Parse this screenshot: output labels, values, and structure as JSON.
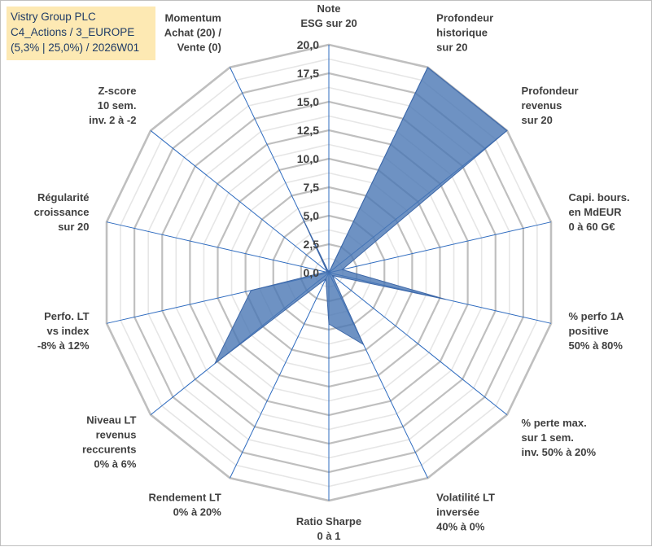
{
  "title_lines": [
    "Vistry Group PLC",
    "C4_Actions / 3_EUROPE",
    "(5,3% | 25,0%) / 2026W01"
  ],
  "chart_data": {
    "type": "radar",
    "r_range": [
      0,
      20
    ],
    "r_ticks": [
      "0,0",
      "2,5",
      "5,0",
      "7,5",
      "10,0",
      "12,5",
      "15,0",
      "17,5",
      "20,0"
    ],
    "grid": true,
    "legend": "none",
    "colors": {
      "fill": "#4a77b4",
      "fill_opacity": 0.8,
      "spokes": "#2e6bbf",
      "grid": "#bfbfbf"
    },
    "axes": [
      {
        "label": [
          "Note",
          "ESG sur 20"
        ],
        "value": 0
      },
      {
        "label": [
          "Profondeur",
          "historique",
          "sur 20"
        ],
        "value": 20
      },
      {
        "label": [
          "Profondeur",
          "revenus",
          "sur 20"
        ],
        "value": 20
      },
      {
        "label": [
          "Capi. bours.",
          "en MdEUR",
          "0 à 60 G€"
        ],
        "value": 1.2
      },
      {
        "label": [
          "% perfo 1A",
          "positive",
          "50% à 80%"
        ],
        "value": 10.5
      },
      {
        "label": [
          "% perte max.",
          "sur 1 sem.",
          "inv. 50% à 20%"
        ],
        "value": 0.4
      },
      {
        "label": [
          "Volatilité LT",
          "inversée",
          "40% à 0%"
        ],
        "value": 7
      },
      {
        "label": [
          "Ratio Sharpe",
          "0 à 1"
        ],
        "value": 4.5
      },
      {
        "label": [
          "Rendement LT",
          "0% à 20%"
        ],
        "value": 0.6
      },
      {
        "label": [
          "Niveau LT",
          "revenus",
          "reccurents",
          "0% à 6%"
        ],
        "value": 12.8
      },
      {
        "label": [
          "Perfo. LT",
          "vs index",
          "-8% à 12%"
        ],
        "value": 7
      },
      {
        "label": [
          "Régularité",
          "croissance",
          "sur 20"
        ],
        "value": 0.3
      },
      {
        "label": [
          "Z-score",
          "10 sem.",
          "inv. 2 à -2"
        ],
        "value": 0.2
      },
      {
        "label": [
          "Momentum",
          "Achat (20) /",
          "Vente (0)"
        ],
        "value": 6
      }
    ]
  }
}
